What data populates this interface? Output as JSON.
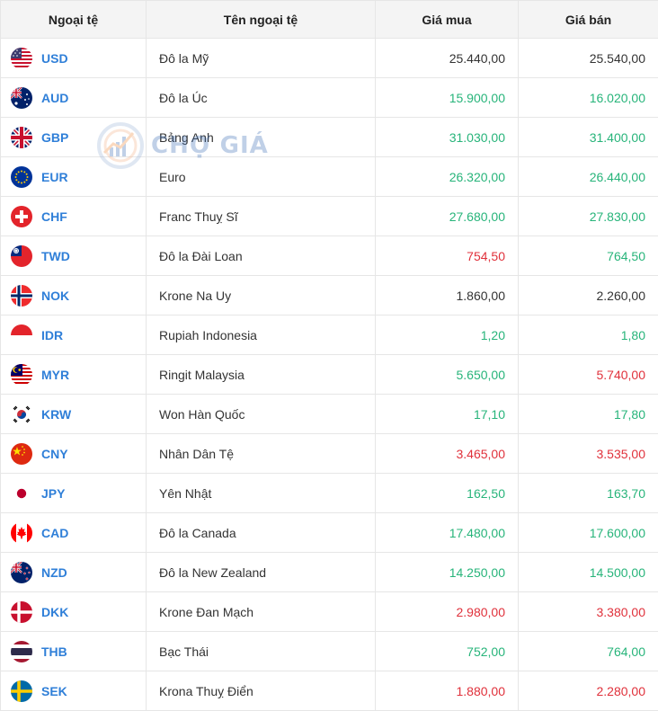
{
  "colors": {
    "up": "#27b47a",
    "down": "#e0313b",
    "neutral": "#333333",
    "code": "#2f7fd8"
  },
  "header": {
    "col_currency": "Ngoại tệ",
    "col_name": "Tên ngoại tệ",
    "col_buy": "Giá mua",
    "col_sell": "Giá bán"
  },
  "watermark": {
    "text": "CHỢ GIÁ"
  },
  "rows": [
    {
      "flag": "us-flag-icon",
      "code": "USD",
      "name": "Đô la Mỹ",
      "buy": "25.440,00",
      "sell": "25.540,00",
      "buy_trend": "neutral",
      "sell_trend": "neutral"
    },
    {
      "flag": "au-flag-icon",
      "code": "AUD",
      "name": "Đô la Úc",
      "buy": "15.900,00",
      "sell": "16.020,00",
      "buy_trend": "up",
      "sell_trend": "up"
    },
    {
      "flag": "gb-flag-icon",
      "code": "GBP",
      "name": "Bảng Anh",
      "buy": "31.030,00",
      "sell": "31.400,00",
      "buy_trend": "up",
      "sell_trend": "up"
    },
    {
      "flag": "eu-flag-icon",
      "code": "EUR",
      "name": "Euro",
      "buy": "26.320,00",
      "sell": "26.440,00",
      "buy_trend": "up",
      "sell_trend": "up"
    },
    {
      "flag": "ch-flag-icon",
      "code": "CHF",
      "name": "Franc Thuỵ Sĩ",
      "buy": "27.680,00",
      "sell": "27.830,00",
      "buy_trend": "up",
      "sell_trend": "up"
    },
    {
      "flag": "tw-flag-icon",
      "code": "TWD",
      "name": "Đô la Đài Loan",
      "buy": "754,50",
      "sell": "764,50",
      "buy_trend": "down",
      "sell_trend": "up"
    },
    {
      "flag": "no-flag-icon",
      "code": "NOK",
      "name": "Krone Na Uy",
      "buy": "1.860,00",
      "sell": "2.260,00",
      "buy_trend": "neutral",
      "sell_trend": "neutral"
    },
    {
      "flag": "id-flag-icon",
      "code": "IDR",
      "name": "Rupiah Indonesia",
      "buy": "1,20",
      "sell": "1,80",
      "buy_trend": "up",
      "sell_trend": "up"
    },
    {
      "flag": "my-flag-icon",
      "code": "MYR",
      "name": "Ringit Malaysia",
      "buy": "5.650,00",
      "sell": "5.740,00",
      "buy_trend": "up",
      "sell_trend": "down"
    },
    {
      "flag": "kr-flag-icon",
      "code": "KRW",
      "name": "Won Hàn Quốc",
      "buy": "17,10",
      "sell": "17,80",
      "buy_trend": "up",
      "sell_trend": "up"
    },
    {
      "flag": "cn-flag-icon",
      "code": "CNY",
      "name": "Nhân Dân Tệ",
      "buy": "3.465,00",
      "sell": "3.535,00",
      "buy_trend": "down",
      "sell_trend": "down"
    },
    {
      "flag": "jp-flag-icon",
      "code": "JPY",
      "name": "Yên Nhật",
      "buy": "162,50",
      "sell": "163,70",
      "buy_trend": "up",
      "sell_trend": "up"
    },
    {
      "flag": "ca-flag-icon",
      "code": "CAD",
      "name": "Đô la Canada",
      "buy": "17.480,00",
      "sell": "17.600,00",
      "buy_trend": "up",
      "sell_trend": "up"
    },
    {
      "flag": "nz-flag-icon",
      "code": "NZD",
      "name": "Đô la New Zealand",
      "buy": "14.250,00",
      "sell": "14.500,00",
      "buy_trend": "up",
      "sell_trend": "up"
    },
    {
      "flag": "dk-flag-icon",
      "code": "DKK",
      "name": "Krone Đan Mạch",
      "buy": "2.980,00",
      "sell": "3.380,00",
      "buy_trend": "down",
      "sell_trend": "down"
    },
    {
      "flag": "th-flag-icon",
      "code": "THB",
      "name": "Bạc Thái",
      "buy": "752,00",
      "sell": "764,00",
      "buy_trend": "up",
      "sell_trend": "up"
    },
    {
      "flag": "se-flag-icon",
      "code": "SEK",
      "name": "Krona Thuỵ Điển",
      "buy": "1.880,00",
      "sell": "2.280,00",
      "buy_trend": "down",
      "sell_trend": "down"
    }
  ]
}
